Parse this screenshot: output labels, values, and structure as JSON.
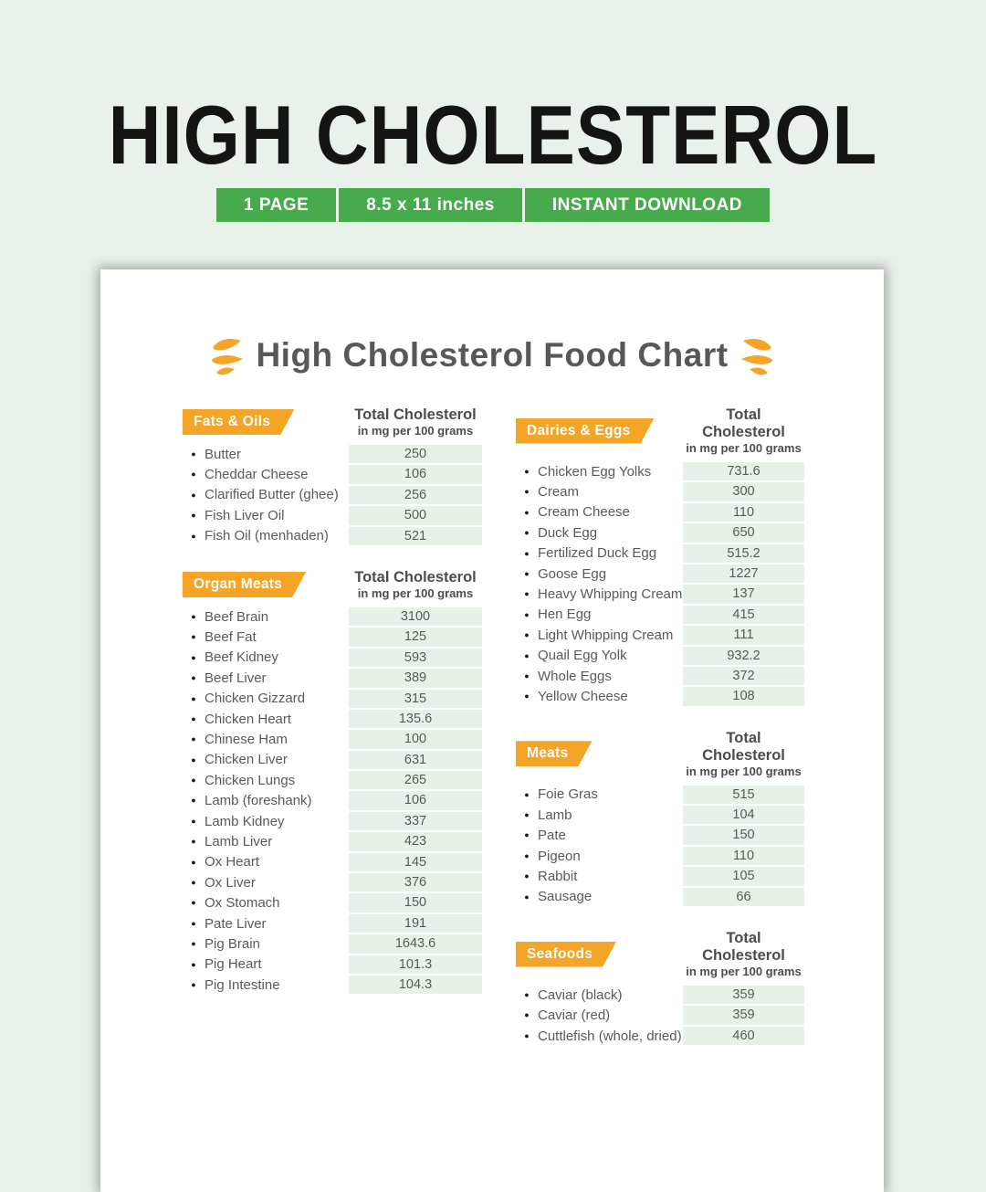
{
  "header": {
    "title": "HIGH CHOLESTEROL",
    "badges": [
      "1 PAGE",
      "8.5 x 11 inches",
      "INSTANT DOWNLOAD"
    ]
  },
  "document": {
    "title": "High Cholesterol Food Chart",
    "value_header": {
      "line1": "Total Cholesterol",
      "line2": "in mg per 100 grams"
    },
    "columns": [
      {
        "sections": [
          {
            "name": "Fats & Oils",
            "items": [
              {
                "label": "Butter",
                "value": "250"
              },
              {
                "label": "Cheddar Cheese",
                "value": "106"
              },
              {
                "label": "Clarified Butter (ghee)",
                "value": "256"
              },
              {
                "label": "Fish Liver Oil",
                "value": "500"
              },
              {
                "label": "Fish Oil (menhaden)",
                "value": "521"
              }
            ]
          },
          {
            "name": "Organ Meats",
            "items": [
              {
                "label": "Beef Brain",
                "value": "3100"
              },
              {
                "label": "Beef Fat",
                "value": "125"
              },
              {
                "label": "Beef Kidney",
                "value": "593"
              },
              {
                "label": "Beef Liver",
                "value": "389"
              },
              {
                "label": "Chicken Gizzard",
                "value": "315"
              },
              {
                "label": "Chicken Heart",
                "value": "135.6"
              },
              {
                "label": "Chinese Ham",
                "value": "100"
              },
              {
                "label": "Chicken Liver",
                "value": "631"
              },
              {
                "label": "Chicken Lungs",
                "value": "265"
              },
              {
                "label": "Lamb (foreshank)",
                "value": "106"
              },
              {
                "label": "Lamb Kidney",
                "value": "337"
              },
              {
                "label": "Lamb Liver",
                "value": "423"
              },
              {
                "label": "Ox Heart",
                "value": "145"
              },
              {
                "label": "Ox Liver",
                "value": "376"
              },
              {
                "label": "Ox Stomach",
                "value": "150"
              },
              {
                "label": "Pate Liver",
                "value": "191"
              },
              {
                "label": "Pig Brain",
                "value": "1643.6"
              },
              {
                "label": "Pig Heart",
                "value": "101.3"
              },
              {
                "label": "Pig Intestine",
                "value": "104.3"
              }
            ]
          }
        ]
      },
      {
        "sections": [
          {
            "name": "Dairies & Eggs",
            "items": [
              {
                "label": "Chicken Egg Yolks",
                "value": "731.6"
              },
              {
                "label": "Cream",
                "value": "300"
              },
              {
                "label": "Cream Cheese",
                "value": "110"
              },
              {
                "label": "Duck Egg",
                "value": "650"
              },
              {
                "label": "Fertilized Duck Egg",
                "value": "515.2"
              },
              {
                "label": "Goose Egg",
                "value": "1227"
              },
              {
                "label": "Heavy Whipping Cream",
                "value": "137"
              },
              {
                "label": "Hen Egg",
                "value": "415"
              },
              {
                "label": "Light Whipping Cream",
                "value": "111"
              },
              {
                "label": "Quail Egg Yolk",
                "value": "932.2"
              },
              {
                "label": "Whole Eggs",
                "value": "372"
              },
              {
                "label": "Yellow Cheese",
                "value": "108"
              }
            ]
          },
          {
            "name": "Meats",
            "items": [
              {
                "label": "Foie Gras",
                "value": "515"
              },
              {
                "label": "Lamb",
                "value": "104"
              },
              {
                "label": "Pate",
                "value": "150"
              },
              {
                "label": "Pigeon",
                "value": "110"
              },
              {
                "label": "Rabbit",
                "value": "105"
              },
              {
                "label": "Sausage",
                "value": "66"
              }
            ]
          },
          {
            "name": "Seafoods",
            "items": [
              {
                "label": "Caviar (black)",
                "value": "359"
              },
              {
                "label": "Caviar (red)",
                "value": "359"
              },
              {
                "label": "Cuttlefish (whole, dried)",
                "value": "460"
              }
            ]
          }
        ]
      }
    ]
  },
  "colors": {
    "bg": "#e9f1ea",
    "green": "#47ab4e",
    "orange": "#f4a427",
    "cell": "#e7f1e8"
  }
}
